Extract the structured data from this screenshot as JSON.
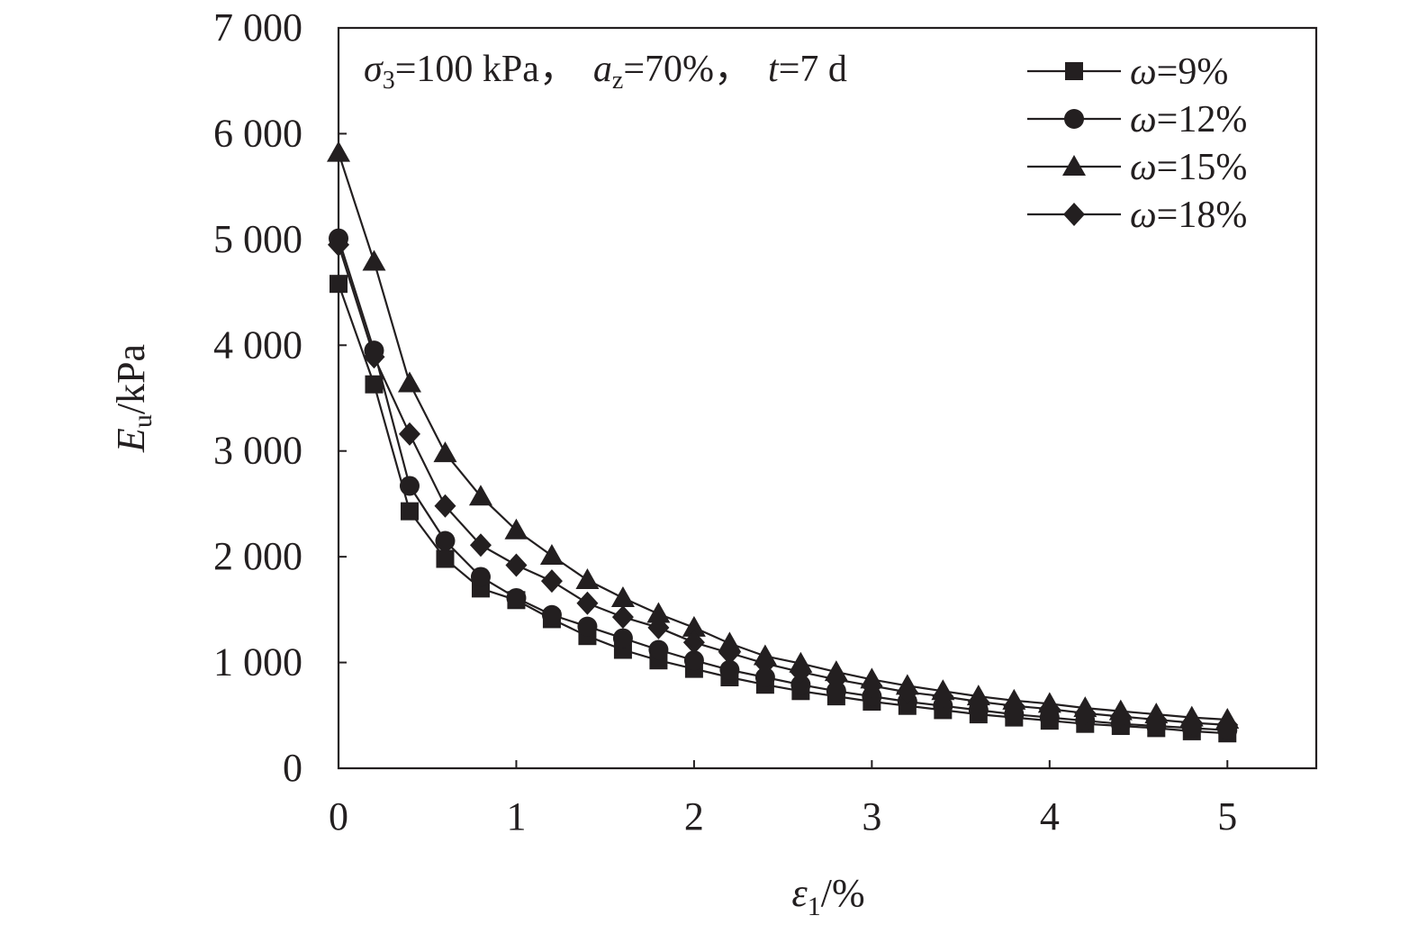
{
  "chart_data": {
    "type": "line",
    "x_axis": {
      "label_var": "ε",
      "label_sub": "1",
      "label_unit": "/%",
      "range": [
        0,
        5.5
      ],
      "ticks": [
        0,
        1,
        2,
        3,
        4,
        5
      ],
      "tick_labels": [
        "0",
        "1",
        "2",
        "3",
        "4",
        "5"
      ]
    },
    "y_axis": {
      "label_var": "E",
      "label_sub": "u",
      "label_unit": "/kPa",
      "range": [
        0,
        7000
      ],
      "ticks": [
        0,
        1000,
        2000,
        3000,
        4000,
        5000,
        6000,
        7000
      ],
      "tick_labels": [
        "0",
        "1 000",
        "2 000",
        "3 000",
        "4 000",
        "5 000",
        "6 000",
        "7 000"
      ]
    },
    "grid": false,
    "legend_position": "top-right",
    "annotation": {
      "sigma_var": "σ",
      "sigma_sub": "3",
      "sigma_value": "=100 kPa，",
      "a_var": "a",
      "a_sub": "z",
      "a_value": "=70%，",
      "t_var": "t",
      "t_value": "=7 d"
    },
    "x": [
      0,
      0.2,
      0.4,
      0.6,
      0.8,
      1.0,
      1.2,
      1.4,
      1.6,
      1.8,
      2.0,
      2.2,
      2.4,
      2.6,
      2.8,
      3.0,
      3.2,
      3.4,
      3.6,
      3.8,
      4.0,
      4.2,
      4.4,
      4.6,
      4.8,
      5.0
    ],
    "series": [
      {
        "var": "ω",
        "value": "=9%",
        "marker": "square",
        "values": [
          4580,
          3630,
          2430,
          1980,
          1700,
          1590,
          1410,
          1250,
          1120,
          1020,
          940,
          860,
          790,
          730,
          680,
          630,
          590,
          550,
          510,
          480,
          450,
          420,
          400,
          380,
          350,
          330
        ]
      },
      {
        "var": "ω",
        "value": "=12%",
        "marker": "circle",
        "values": [
          5010,
          3950,
          2670,
          2150,
          1810,
          1610,
          1450,
          1340,
          1230,
          1120,
          1020,
          930,
          860,
          790,
          730,
          680,
          630,
          590,
          550,
          510,
          480,
          450,
          420,
          400,
          380,
          360
        ]
      },
      {
        "var": "ω",
        "value": "=15%",
        "marker": "triangle",
        "values": [
          5820,
          4790,
          3640,
          2980,
          2570,
          2250,
          2010,
          1780,
          1610,
          1460,
          1330,
          1180,
          1060,
          990,
          910,
          840,
          780,
          730,
          680,
          640,
          610,
          570,
          540,
          510,
          480,
          460
        ]
      },
      {
        "var": "ω",
        "value": "=18%",
        "marker": "diamond",
        "values": [
          4950,
          3890,
          3160,
          2480,
          2110,
          1920,
          1770,
          1560,
          1430,
          1330,
          1190,
          1090,
          990,
          910,
          840,
          780,
          720,
          680,
          630,
          590,
          560,
          520,
          490,
          460,
          430,
          410
        ]
      }
    ]
  }
}
